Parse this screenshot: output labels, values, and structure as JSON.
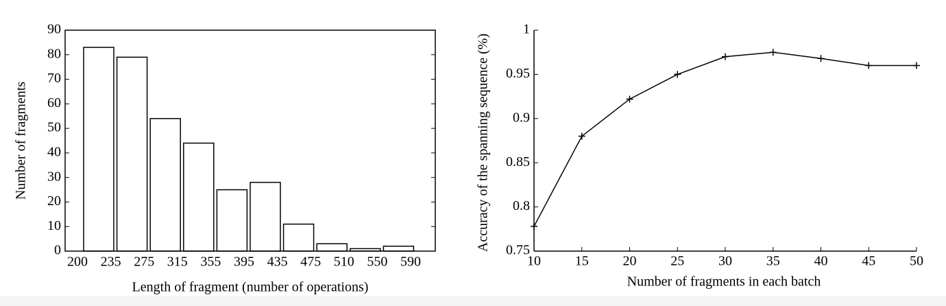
{
  "chart_data": [
    {
      "type": "histogram",
      "x_label": "Length of fragment (number of operations)",
      "y_label": "Number of fragments",
      "bins": [
        200,
        235,
        275,
        315,
        355,
        395,
        435,
        475,
        510,
        550,
        590
      ],
      "values": [
        83,
        79,
        54,
        44,
        25,
        28,
        11,
        3,
        1,
        2
      ],
      "color": "#ffffff",
      "ylim": [
        0,
        90
      ],
      "yticks": [
        0,
        10,
        20,
        30,
        40,
        50,
        60,
        70,
        80,
        90
      ]
    },
    {
      "type": "line",
      "x_label": "Number of fragments in each batch",
      "y_label": "Accuracy of the spanning sequence (%)",
      "x": [
        10,
        15,
        20,
        25,
        30,
        35,
        40,
        45,
        50
      ],
      "values": [
        0.778,
        0.88,
        0.922,
        0.95,
        0.97,
        0.975,
        0.968,
        0.96,
        0.96
      ],
      "color": "#000000",
      "xlim": [
        10,
        50
      ],
      "xticks": [
        10,
        15,
        20,
        25,
        30,
        35,
        40,
        45,
        50
      ],
      "ylim": [
        0.75,
        1
      ],
      "yticks": [
        0.75,
        0.8,
        0.85,
        0.9,
        0.95,
        1
      ]
    }
  ]
}
